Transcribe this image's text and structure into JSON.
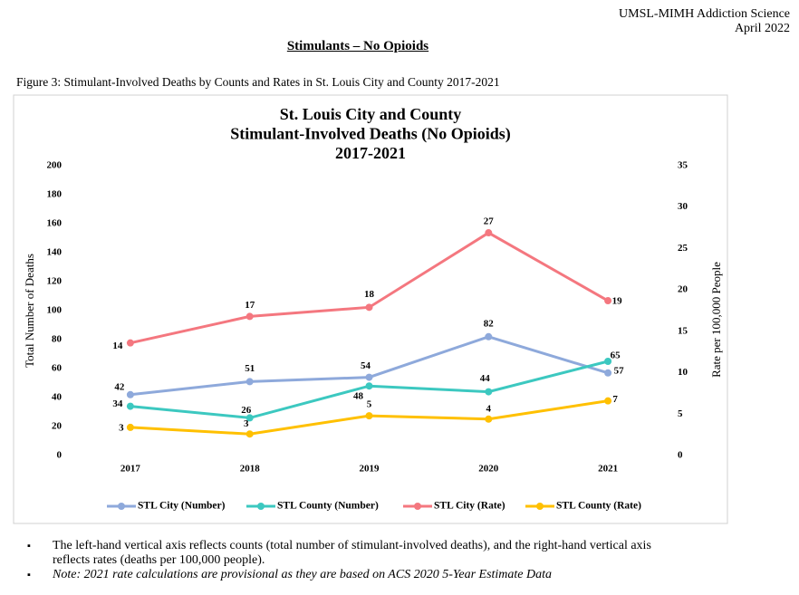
{
  "header": {
    "org": "UMSL-MIMH Addiction Science",
    "date": "April 2022"
  },
  "section_title": "Stimulants – No Opioids",
  "figure_caption": "Figure 3: Stimulant-Involved Deaths by Counts and Rates in St. Louis City and County 2017-2021",
  "chart_data": {
    "type": "line",
    "title": [
      "St. Louis City and County",
      "Stimulant-Involved Deaths (No Opioids)",
      "2017-2021"
    ],
    "y_label": "Total Number of Deaths",
    "y2_label": "Rate per 100,000 People",
    "categories": [
      "2017",
      "2018",
      "2019",
      "2020",
      "2021"
    ],
    "ylim": [
      0,
      200
    ],
    "yticks": [
      0,
      20,
      40,
      60,
      80,
      100,
      120,
      140,
      160,
      180,
      200
    ],
    "y2lim": [
      0,
      35
    ],
    "y2ticks": [
      0,
      5,
      10,
      15,
      20,
      25,
      30,
      35
    ],
    "grid": false,
    "legend": "bottom",
    "series": [
      {
        "name": "STL City (Number)",
        "color": "#8EA9DB",
        "values": [
          42,
          51,
          54,
          82,
          57
        ]
      },
      {
        "name": "STL County (Number)",
        "color": "#3CC8C0",
        "values": [
          34,
          26,
          48,
          44,
          65
        ]
      },
      {
        "name": "STL City (Rate)",
        "color": "#F4777F",
        "axis": "y2",
        "values": [
          13.6,
          16.8,
          17.9,
          26.9,
          18.7
        ],
        "value_labels": [
          "14",
          "17",
          "18",
          "27",
          "19"
        ]
      },
      {
        "name": "STL County (Rate)",
        "color": "#FFC000",
        "axis": "y2",
        "values": [
          3.4,
          2.6,
          4.8,
          4.4,
          6.6
        ],
        "value_labels": [
          "3",
          "3",
          "5",
          "4",
          "7"
        ]
      }
    ]
  },
  "notes": [
    "The left-hand vertical axis reflects counts (total number of stimulant-involved deaths), and the right-hand vertical axis reflects rates (deaths per 100,000 people).",
    "Note: 2021 rate calculations are provisional as they are based on ACS 2020 5-Year Estimate Data"
  ]
}
